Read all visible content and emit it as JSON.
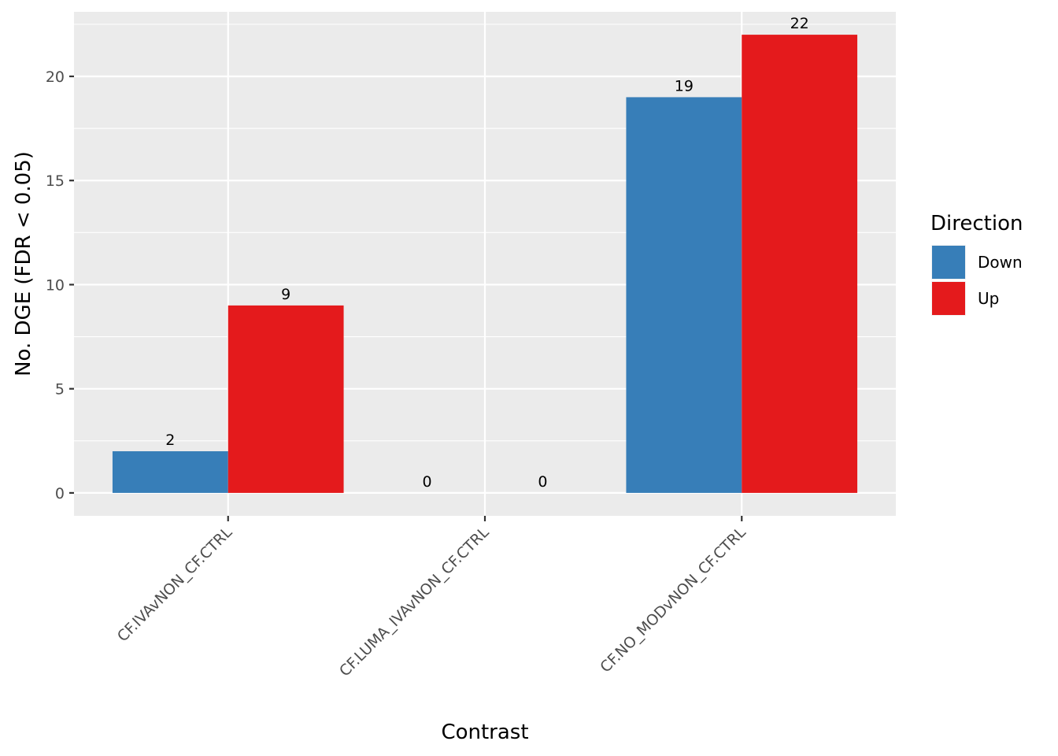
{
  "chart_data": {
    "type": "bar",
    "categories": [
      "CF.IVAvNON_CF.CTRL",
      "CF.LUMA_IVAvNON_CF.CTRL",
      "CF.NO_MODvNON_CF.CTRL"
    ],
    "series": [
      {
        "name": "Down",
        "values": [
          2,
          0,
          19
        ],
        "color": "#377EB8"
      },
      {
        "name": "Up",
        "values": [
          9,
          0,
          22
        ],
        "color": "#E41A1C"
      }
    ],
    "xlabel": "Contrast",
    "ylabel": "No. DGE (FDR < 0.05)",
    "ylim": [
      -1.1,
      23.1
    ],
    "yticks": [
      0,
      5,
      10,
      15,
      20
    ],
    "grid": true,
    "legend": {
      "title": "Direction",
      "placement": "right"
    },
    "panel_background": "#EBEBEB"
  }
}
